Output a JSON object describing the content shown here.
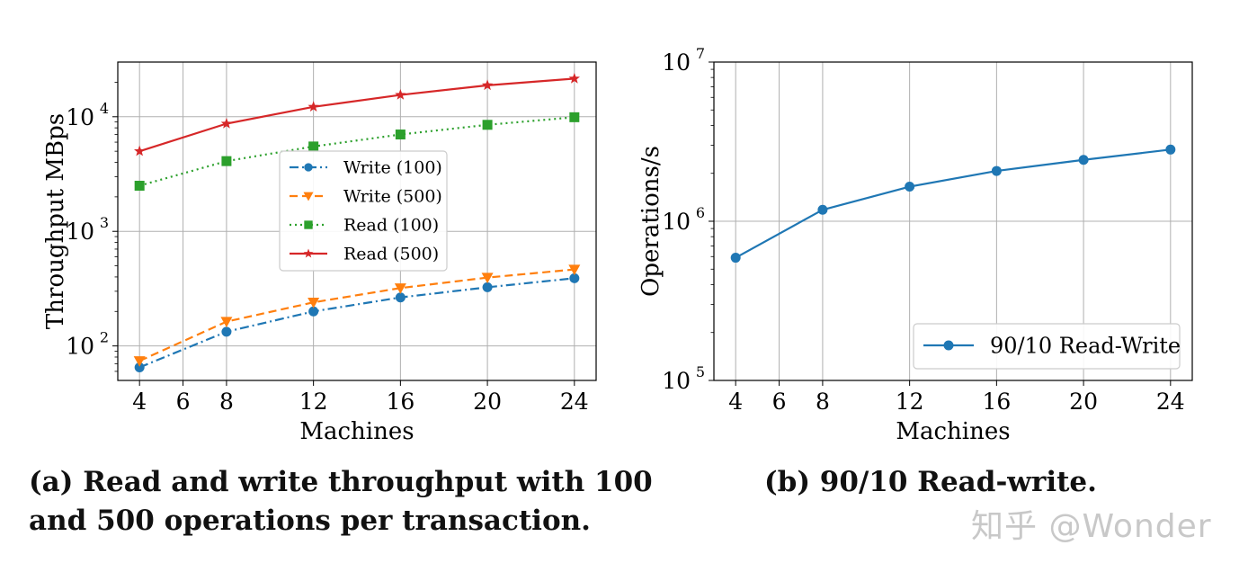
{
  "captions": {
    "a_line1": "(a) Read and write throughput with 100",
    "a_line2": "and 500 operations per transaction.",
    "b": "(b) 90/10 Read-write."
  },
  "watermark": "知乎 @Wonder",
  "chart_data": [
    {
      "type": "line",
      "title": "",
      "xlabel": "Machines",
      "ylabel": "Throughput MBps",
      "xscale": "linear",
      "yscale": "log",
      "xlim": [
        3,
        25
      ],
      "ylim": [
        50,
        30000
      ],
      "xticks": [
        4,
        6,
        8,
        12,
        16,
        20,
        24
      ],
      "yticks": [
        {
          "value": 100,
          "base": "10",
          "exp": "2"
        },
        {
          "value": 1000,
          "base": "10",
          "exp": "3"
        },
        {
          "value": 10000,
          "base": "10",
          "exp": "4"
        }
      ],
      "grid": true,
      "legend_position": "center-right",
      "x": [
        4,
        8,
        12,
        16,
        20,
        24
      ],
      "series": [
        {
          "name": "Write (100)",
          "color": "#1f77b4",
          "dash": "dashdot",
          "marker": "circle",
          "values": [
            65,
            133,
            200,
            265,
            325,
            390
          ]
        },
        {
          "name": "Write (500)",
          "color": "#ff7f0e",
          "dash": "dashed",
          "marker": "triangle-down",
          "values": [
            74,
            163,
            240,
            320,
            395,
            465
          ]
        },
        {
          "name": "Read (100)",
          "color": "#2ca02c",
          "dash": "dotted",
          "marker": "square",
          "values": [
            2500,
            4100,
            5500,
            7000,
            8500,
            9900
          ]
        },
        {
          "name": "Read (500)",
          "color": "#d62728",
          "dash": "solid",
          "marker": "star",
          "values": [
            5000,
            8700,
            12200,
            15500,
            18800,
            21500
          ]
        }
      ]
    },
    {
      "type": "line",
      "title": "",
      "xlabel": "Machines",
      "ylabel": "Operations/s",
      "xscale": "linear",
      "yscale": "log",
      "xlim": [
        3,
        25
      ],
      "ylim": [
        100000,
        10000000
      ],
      "xticks": [
        4,
        6,
        8,
        12,
        16,
        20,
        24
      ],
      "yticks": [
        {
          "value": 100000,
          "base": "10",
          "exp": "5"
        },
        {
          "value": 1000000,
          "base": "10",
          "exp": "6"
        },
        {
          "value": 10000000,
          "base": "10",
          "exp": "7"
        }
      ],
      "grid": true,
      "legend_position": "lower-right",
      "x": [
        4,
        8,
        12,
        16,
        20,
        24
      ],
      "series": [
        {
          "name": "90/10 Read-Write",
          "color": "#1f77b4",
          "dash": "solid",
          "marker": "circle",
          "values": [
            590000,
            1180000,
            1650000,
            2070000,
            2430000,
            2820000
          ]
        }
      ]
    }
  ]
}
